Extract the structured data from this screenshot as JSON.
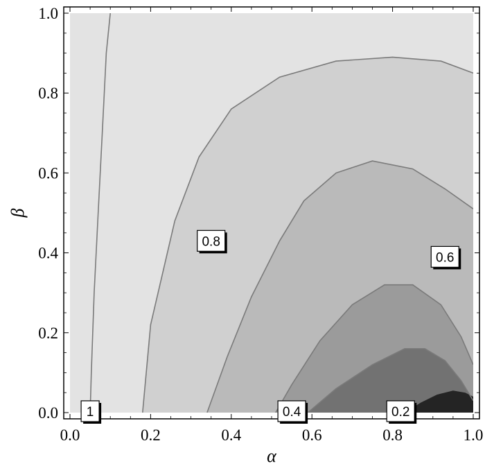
{
  "chart_data": {
    "type": "contour",
    "title": "",
    "xlabel": "α",
    "ylabel": "β",
    "xlim": [
      0.0,
      1.0
    ],
    "ylim": [
      0.0,
      1.0
    ],
    "x_ticks": [
      "0.0",
      "0.2",
      "0.4",
      "0.6",
      "0.8",
      "1.0"
    ],
    "y_ticks": [
      "0.0",
      "0.2",
      "0.4",
      "0.6",
      "0.8",
      "1.0"
    ],
    "grid": false,
    "levels": [
      {
        "value": 1.0,
        "label": "1",
        "label_at": [
          0.05,
          0.0
        ],
        "path": [
          [
            0.05,
            0.0
          ],
          [
            0.053,
            0.1
          ],
          [
            0.06,
            0.3
          ],
          [
            0.07,
            0.5
          ],
          [
            0.08,
            0.7
          ],
          [
            0.09,
            0.9
          ],
          [
            0.1,
            1.0
          ]
        ]
      },
      {
        "value": 0.8,
        "label": "0.8",
        "label_at": [
          0.35,
          0.43
        ],
        "path": [
          [
            0.18,
            0.0
          ],
          [
            0.2,
            0.22
          ],
          [
            0.26,
            0.48
          ],
          [
            0.32,
            0.64
          ],
          [
            0.4,
            0.76
          ],
          [
            0.52,
            0.84
          ],
          [
            0.66,
            0.88
          ],
          [
            0.8,
            0.89
          ],
          [
            0.92,
            0.88
          ],
          [
            1.0,
            0.85
          ]
        ]
      },
      {
        "value": 0.6,
        "label": "0.6",
        "label_at": [
          0.93,
          0.39
        ],
        "path": [
          [
            0.34,
            0.0
          ],
          [
            0.39,
            0.14
          ],
          [
            0.45,
            0.29
          ],
          [
            0.52,
            0.43
          ],
          [
            0.58,
            0.53
          ],
          [
            0.66,
            0.6
          ],
          [
            0.75,
            0.63
          ],
          [
            0.85,
            0.61
          ],
          [
            0.93,
            0.56
          ],
          [
            1.0,
            0.51
          ]
        ]
      },
      {
        "value": 0.4,
        "label": "0.4",
        "label_at": [
          0.55,
          0.01
        ],
        "path": [
          [
            0.51,
            0.0
          ],
          [
            0.55,
            0.07
          ],
          [
            0.62,
            0.18
          ],
          [
            0.7,
            0.27
          ],
          [
            0.78,
            0.32
          ],
          [
            0.85,
            0.32
          ],
          [
            0.92,
            0.27
          ],
          [
            0.97,
            0.19
          ],
          [
            1.0,
            0.12
          ]
        ]
      },
      {
        "value": 0.2,
        "label": "0.2",
        "label_at": [
          0.82,
          0.01
        ],
        "path": [
          [
            0.59,
            0.0
          ],
          [
            0.66,
            0.06
          ],
          [
            0.75,
            0.12
          ],
          [
            0.83,
            0.16
          ],
          [
            0.88,
            0.16
          ],
          [
            0.93,
            0.13
          ],
          [
            0.97,
            0.08
          ],
          [
            1.0,
            0.03
          ]
        ]
      },
      {
        "value": 0.0,
        "label": "",
        "path": [
          [
            0.83,
            0.0
          ],
          [
            0.87,
            0.025
          ],
          [
            0.91,
            0.045
          ],
          [
            0.95,
            0.055
          ],
          [
            0.98,
            0.05
          ],
          [
            1.0,
            0.04
          ]
        ]
      }
    ]
  }
}
